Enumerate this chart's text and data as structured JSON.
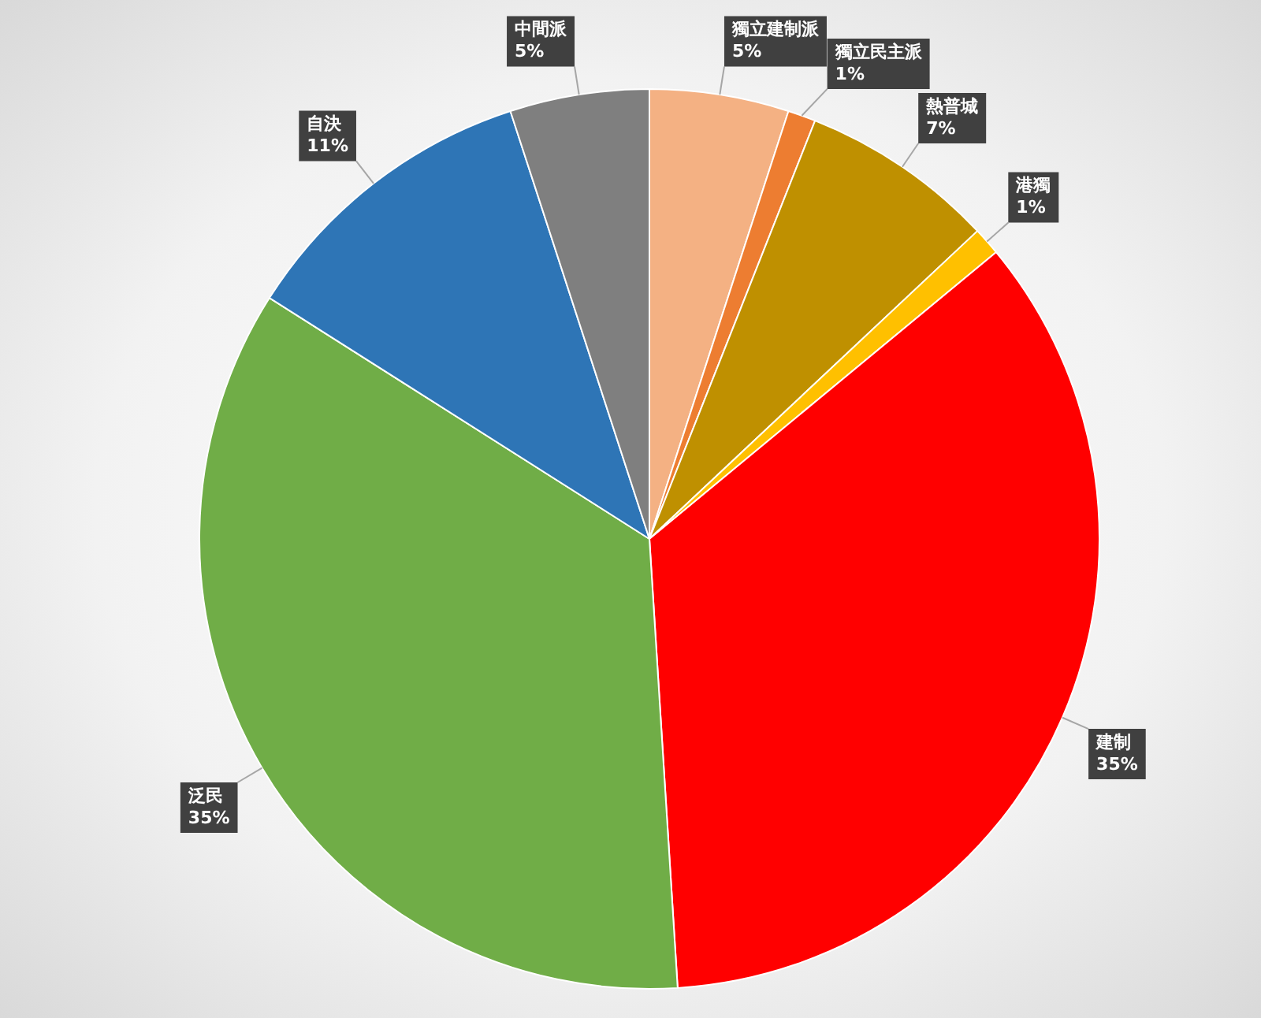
{
  "chart_data": {
    "type": "pie",
    "categories": [
      "獨立建制派",
      "獨立民主派",
      "熱普城",
      "港獨",
      "建制",
      "泛民",
      "自決",
      "中間派"
    ],
    "values": [
      5,
      1,
      7,
      1,
      35,
      35,
      11,
      5
    ],
    "value_labels": [
      "5%",
      "1%",
      "7%",
      "1%",
      "35%",
      "35%",
      "11%",
      "5%"
    ],
    "colors": [
      "#f4b183",
      "#ed7d31",
      "#bf9000",
      "#ffc000",
      "#ff0000",
      "#70ad47",
      "#2e75b6",
      "#7f7f7f"
    ]
  }
}
